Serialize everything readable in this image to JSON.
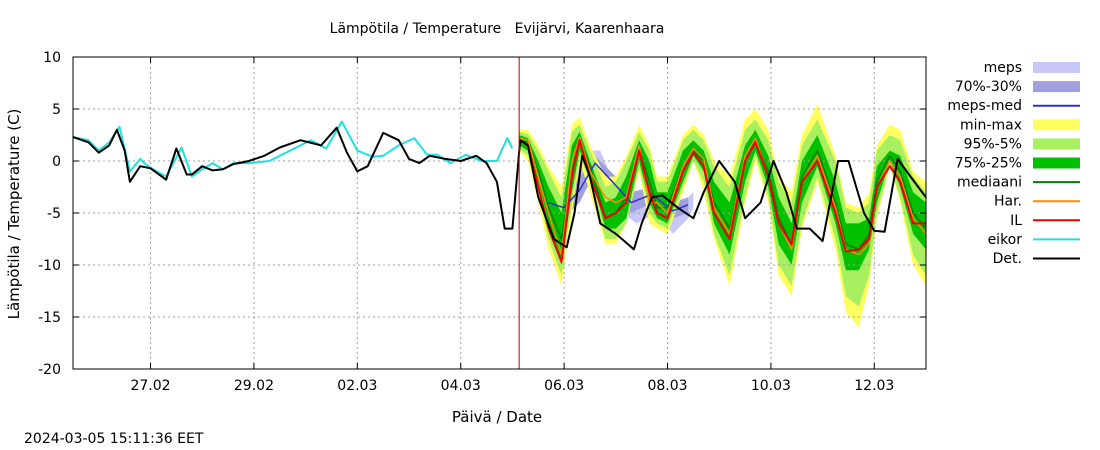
{
  "chart_data": {
    "type": "line",
    "title": "Lämpötila / Temperature   Evijärvi, Kaarenhaara",
    "xlabel": "Päivä / Date",
    "ylabel": "Lämpötila / Temperature (C)",
    "timestamp": "2024-03-05 15:11:36 EET",
    "xlim": [
      0,
      16.5
    ],
    "ylim": [
      -20,
      10
    ],
    "x_unit": "days since 26.02 00:00",
    "x_ticks": [
      {
        "x": 1.5,
        "label": "27.02"
      },
      {
        "x": 3.5,
        "label": "29.02"
      },
      {
        "x": 5.5,
        "label": "02.03"
      },
      {
        "x": 7.5,
        "label": "04.03"
      },
      {
        "x": 9.5,
        "label": "06.03"
      },
      {
        "x": 11.5,
        "label": "08.03"
      },
      {
        "x": 13.5,
        "label": "10.03"
      },
      {
        "x": 15.5,
        "label": "12.03"
      }
    ],
    "y_ticks": [
      {
        "y": 10,
        "label": "10"
      },
      {
        "y": 5,
        "label": "5"
      },
      {
        "y": 0,
        "label": "0"
      },
      {
        "y": -5,
        "label": "-5"
      },
      {
        "y": -10,
        "label": "-10"
      },
      {
        "y": -15,
        "label": "-15"
      },
      {
        "y": -20,
        "label": "-20"
      }
    ],
    "grid": true,
    "forecast_start_x": 8.63,
    "colors": {
      "meps": "#c8c8f8",
      "meps_70_30": "#a0a0e0",
      "meps_med": "#3030d0",
      "min_max": "#ffff60",
      "p95_5": "#a8f060",
      "p75_25": "#00c000",
      "mediaani": "#008000",
      "har": "#ff8c00",
      "il": "#ee0000",
      "eikor": "#20e0e0",
      "det": "#000000",
      "forecast_line": "#c00000"
    },
    "legend": [
      {
        "label": "meps",
        "kind": "band",
        "color_key": "meps"
      },
      {
        "label": "70%-30%",
        "kind": "band",
        "color_key": "meps_70_30"
      },
      {
        "label": "meps-med",
        "kind": "line",
        "color_key": "meps_med"
      },
      {
        "label": "min-max",
        "kind": "band",
        "color_key": "min_max"
      },
      {
        "label": "95%-5%",
        "kind": "band",
        "color_key": "p95_5"
      },
      {
        "label": "75%-25%",
        "kind": "band",
        "color_key": "p75_25"
      },
      {
        "label": "mediaani",
        "kind": "line",
        "color_key": "mediaani"
      },
      {
        "label": "Har.",
        "kind": "line",
        "color_key": "har"
      },
      {
        "label": "IL",
        "kind": "line",
        "color_key": "il"
      },
      {
        "label": "eikor",
        "kind": "line",
        "color_key": "eikor"
      },
      {
        "label": "Det.",
        "kind": "line",
        "color_key": "det"
      }
    ],
    "ensemble_x": [
      8.63,
      8.8,
      9.0,
      9.2,
      9.45,
      9.65,
      9.8,
      10.0,
      10.3,
      10.5,
      10.7,
      10.95,
      11.15,
      11.3,
      11.5,
      11.8,
      12.0,
      12.2,
      12.4,
      12.7,
      13.0,
      13.2,
      13.45,
      13.65,
      13.9,
      14.1,
      14.4,
      14.75,
      14.95,
      15.2,
      15.4,
      15.55,
      15.8,
      16.0,
      16.25,
      16.5
    ],
    "min_max": {
      "lo": [
        1.0,
        0.0,
        -4.0,
        -8.5,
        -12.0,
        -5.0,
        0.0,
        -3.0,
        -8.0,
        -8.0,
        -6.0,
        -1.0,
        -6.0,
        -6.5,
        -7.0,
        -3.0,
        0.0,
        -3.0,
        -7.5,
        -12.0,
        -4.0,
        0.0,
        -4.0,
        -11.0,
        -13.0,
        -6.5,
        -2.0,
        -8.5,
        -14.5,
        -16.0,
        -12.0,
        -5.5,
        -0.5,
        -4.0,
        -10.0,
        -12.0
      ],
      "hi": [
        3.0,
        3.0,
        1.5,
        -0.5,
        -2.5,
        3.5,
        4.2,
        1.5,
        -1.5,
        -1.5,
        0.5,
        3.5,
        1.5,
        -1.5,
        -1.5,
        2.5,
        3.5,
        2.5,
        0.0,
        -1.5,
        4.0,
        5.0,
        3.0,
        -1.5,
        -3.0,
        2.5,
        5.5,
        0.5,
        -4.0,
        -4.5,
        -3.0,
        1.5,
        3.5,
        3.0,
        -1.0,
        -2.0
      ]
    },
    "p95_5": {
      "lo": [
        1.2,
        0.5,
        -3.0,
        -7.5,
        -11.0,
        -4.0,
        0.5,
        -2.0,
        -7.5,
        -7.5,
        -6.0,
        -0.5,
        -5.0,
        -6.0,
        -6.5,
        -2.5,
        0.0,
        -2.0,
        -7.0,
        -11.0,
        -3.5,
        0.5,
        -3.5,
        -10.0,
        -12.0,
        -6.0,
        -1.5,
        -7.5,
        -13.0,
        -14.0,
        -11.0,
        -5.0,
        -0.5,
        -3.5,
        -9.0,
        -11.0
      ],
      "hi": [
        2.8,
        2.6,
        1.0,
        -1.0,
        -3.5,
        2.8,
        3.5,
        1.0,
        -2.5,
        -2.0,
        0.0,
        2.8,
        1.0,
        -2.0,
        -2.0,
        2.0,
        3.0,
        2.0,
        -0.5,
        -2.5,
        3.0,
        4.0,
        2.0,
        -2.0,
        -4.0,
        1.5,
        4.0,
        0.0,
        -4.5,
        -5.0,
        -4.0,
        1.0,
        2.5,
        2.0,
        -1.5,
        -3.0
      ]
    },
    "p75_25": {
      "lo": [
        1.5,
        1.0,
        -2.0,
        -6.0,
        -10.0,
        -3.0,
        1.0,
        -1.0,
        -6.5,
        -6.5,
        -5.5,
        0.0,
        -4.0,
        -5.5,
        -6.0,
        -2.0,
        0.5,
        -1.0,
        -6.0,
        -9.0,
        -2.0,
        1.0,
        -2.5,
        -8.0,
        -10.0,
        -4.0,
        -0.5,
        -6.0,
        -10.5,
        -10.5,
        -8.5,
        -4.0,
        0.0,
        -2.5,
        -7.0,
        -8.5
      ],
      "hi": [
        2.5,
        2.2,
        0.0,
        -2.5,
        -5.0,
        1.5,
        2.8,
        0.0,
        -4.0,
        -3.5,
        -1.5,
        2.0,
        0.0,
        -3.0,
        -3.0,
        1.0,
        2.0,
        1.0,
        -2.0,
        -4.0,
        1.5,
        3.0,
        0.5,
        -3.5,
        -6.0,
        0.0,
        2.5,
        -2.0,
        -6.0,
        -6.0,
        -5.5,
        -0.5,
        1.0,
        0.5,
        -3.0,
        -4.0
      ]
    },
    "meps": {
      "x": [
        9.0,
        9.3,
        9.6,
        9.9,
        10.2,
        10.5,
        10.9,
        11.3,
        11.6,
        11.9,
        12.0
      ],
      "lo": [
        -3.5,
        -6.5,
        -5.5,
        -1.5,
        -0.5,
        -4.5,
        -6.0,
        -5.0,
        -7.0,
        -5.5,
        -4.5
      ],
      "hi": [
        -1.0,
        -4.0,
        -3.0,
        1.0,
        1.0,
        -2.5,
        -3.0,
        -2.0,
        -4.0,
        -3.5,
        -3.0
      ]
    },
    "meps_70_30": {
      "x": [
        9.2,
        9.5,
        9.8,
        10.1,
        10.4,
        10.8,
        11.2,
        11.6,
        11.9
      ],
      "lo": [
        -5.0,
        -5.5,
        -4.0,
        -1.0,
        -2.5,
        -5.0,
        -4.0,
        -5.5,
        -5.0
      ],
      "hi": [
        -3.0,
        -3.5,
        -1.5,
        0.5,
        -1.0,
        -3.0,
        -2.5,
        -4.0,
        -3.5
      ]
    },
    "meps_med": {
      "x": [
        9.2,
        9.5,
        9.8,
        10.1,
        10.4,
        10.8,
        11.2,
        11.6,
        11.9
      ],
      "y": [
        -4.0,
        -4.5,
        -2.8,
        -0.2,
        -1.8,
        -4.0,
        -3.2,
        -4.8,
        -4.2
      ]
    },
    "mediaani": {
      "x": [
        8.63,
        8.8,
        9.0,
        9.2,
        9.45,
        9.65,
        9.8,
        10.0,
        10.3,
        10.5,
        10.7,
        10.95,
        11.15,
        11.3,
        11.5,
        11.8,
        12.0,
        12.2,
        12.4,
        12.7,
        13.0,
        13.2,
        13.45,
        13.65,
        13.9,
        14.1,
        14.4,
        14.75,
        14.95,
        15.2,
        15.4,
        15.55,
        15.8,
        16.0,
        16.25,
        16.5
      ],
      "y": [
        2.0,
        1.8,
        -1.0,
        -4.5,
        -7.5,
        -1.0,
        2.0,
        -0.5,
        -5.5,
        -5.0,
        -3.5,
        1.2,
        -2.0,
        -4.5,
        -4.5,
        -0.5,
        1.0,
        0.0,
        -4.0,
        -6.5,
        0.0,
        2.0,
        -1.0,
        -5.5,
        -8.0,
        -1.5,
        1.0,
        -4.0,
        -8.0,
        -8.5,
        -7.0,
        -2.0,
        0.5,
        -1.0,
        -5.0,
        -6.5
      ]
    },
    "har": {
      "x": [
        8.63,
        8.8,
        9.0,
        9.2,
        9.45,
        9.65,
        9.8,
        10.0,
        10.3,
        10.5,
        10.7,
        10.95,
        11.15,
        11.3,
        11.5,
        11.8,
        12.0,
        12.2,
        12.4,
        12.7,
        13.0,
        13.2,
        13.45,
        13.65,
        13.9,
        14.1,
        14.4,
        14.75,
        14.95,
        15.2,
        15.4,
        15.55,
        15.8,
        16.0,
        16.25,
        16.5
      ],
      "y": [
        2.2,
        2.0,
        -1.5,
        -5.0,
        -9.0,
        0.0,
        2.3,
        -1.0,
        -3.5,
        -4.0,
        -3.5,
        1.5,
        -4.0,
        -4.0,
        -5.0,
        -0.5,
        1.2,
        0.2,
        -4.5,
        -7.0,
        0.5,
        2.2,
        -1.5,
        -6.0,
        -8.5,
        -2.0,
        0.5,
        -4.5,
        -8.5,
        -9.0,
        -8.0,
        -2.5,
        0.0,
        -1.5,
        -5.5,
        -7.0
      ]
    },
    "il": {
      "x": [
        8.63,
        8.8,
        9.0,
        9.2,
        9.45,
        9.65,
        9.8,
        10.0,
        10.3,
        10.5,
        10.7,
        10.95,
        11.15,
        11.3,
        11.5,
        11.8,
        12.0,
        12.2,
        12.4,
        12.7,
        13.0,
        13.2,
        13.45,
        13.65,
        13.9,
        14.1,
        14.4,
        14.75,
        14.95,
        15.2,
        15.4,
        15.55,
        15.8,
        16.0,
        16.25,
        16.5
      ],
      "y": [
        2.0,
        1.5,
        -2.5,
        -6.5,
        -9.7,
        -1.5,
        2.0,
        -1.5,
        -5.5,
        -5.0,
        -4.0,
        1.0,
        -3.0,
        -5.0,
        -5.5,
        -1.0,
        0.8,
        -0.5,
        -5.0,
        -7.5,
        0.0,
        1.8,
        -1.5,
        -6.0,
        -8.0,
        -2.0,
        0.0,
        -5.0,
        -8.7,
        -8.5,
        -7.5,
        -2.5,
        -0.5,
        -2.0,
        -6.0,
        -6.0
      ]
    },
    "eikor": {
      "x": [
        0,
        0.3,
        0.5,
        0.7,
        0.9,
        1.1,
        1.3,
        1.4,
        1.55,
        1.8,
        2.1,
        2.3,
        2.5,
        2.7,
        2.9,
        3.1,
        3.4,
        3.8,
        4.2,
        4.6,
        4.9,
        5.2,
        5.5,
        5.8,
        6.0,
        6.3,
        6.6,
        6.85,
        7.05,
        7.3,
        7.6,
        7.9,
        8.2,
        8.4,
        8.5
      ],
      "y": [
        2.3,
        2.0,
        1.0,
        1.8,
        3.3,
        -1.0,
        0.2,
        -0.3,
        -0.8,
        -1.5,
        1.3,
        -1.5,
        -0.8,
        -0.2,
        -0.8,
        -0.2,
        -0.2,
        0.0,
        1.0,
        2.0,
        1.2,
        3.8,
        1.0,
        0.4,
        0.5,
        1.5,
        2.2,
        0.6,
        0.6,
        -0.2,
        0.6,
        0.0,
        0.0,
        2.2,
        1.2
      ]
    },
    "det": {
      "x": [
        0,
        0.3,
        0.5,
        0.7,
        0.85,
        1.0,
        1.1,
        1.3,
        1.5,
        1.8,
        2.0,
        2.2,
        2.3,
        2.5,
        2.7,
        2.9,
        3.1,
        3.4,
        3.7,
        4.0,
        4.4,
        4.8,
        5.1,
        5.3,
        5.5,
        5.7,
        6.0,
        6.3,
        6.5,
        6.7,
        6.9,
        7.2,
        7.5,
        7.8,
        8.0,
        8.2,
        8.35,
        8.5,
        8.65,
        8.8,
        9.0,
        9.3,
        9.55,
        9.7,
        9.85,
        10.0,
        10.2,
        10.5,
        10.85,
        11.0,
        11.2,
        11.4,
        11.7,
        12.0,
        12.2,
        12.5,
        12.8,
        13.0,
        13.3,
        13.55,
        13.8,
        14.0,
        14.25,
        14.5,
        14.8,
        15.0,
        15.3,
        15.5,
        15.7,
        15.95,
        16.2,
        16.5
      ],
      "y": [
        2.3,
        1.8,
        0.8,
        1.5,
        3.0,
        1.0,
        -2.0,
        -0.5,
        -0.7,
        -1.8,
        1.2,
        -1.3,
        -1.3,
        -0.5,
        -0.9,
        -0.8,
        -0.3,
        0.0,
        0.5,
        1.3,
        2.0,
        1.5,
        3.2,
        0.8,
        -1.0,
        -0.5,
        2.7,
        2.0,
        0.2,
        -0.2,
        0.5,
        0.2,
        0.0,
        0.5,
        -0.2,
        -2.0,
        -6.5,
        -6.5,
        2.0,
        1.5,
        -3.5,
        -7.5,
        -8.3,
        -5.0,
        0.5,
        -1.5,
        -6.0,
        -7.0,
        -8.5,
        -6.0,
        -3.5,
        -3.3,
        -4.5,
        -5.5,
        -3.0,
        0.0,
        -2.0,
        -5.5,
        -4.0,
        0.0,
        -3.0,
        -6.5,
        -6.5,
        -7.7,
        0.0,
        0.0,
        -5.0,
        -6.7,
        -6.8,
        0.2,
        -1.5,
        -3.5
      ]
    }
  }
}
